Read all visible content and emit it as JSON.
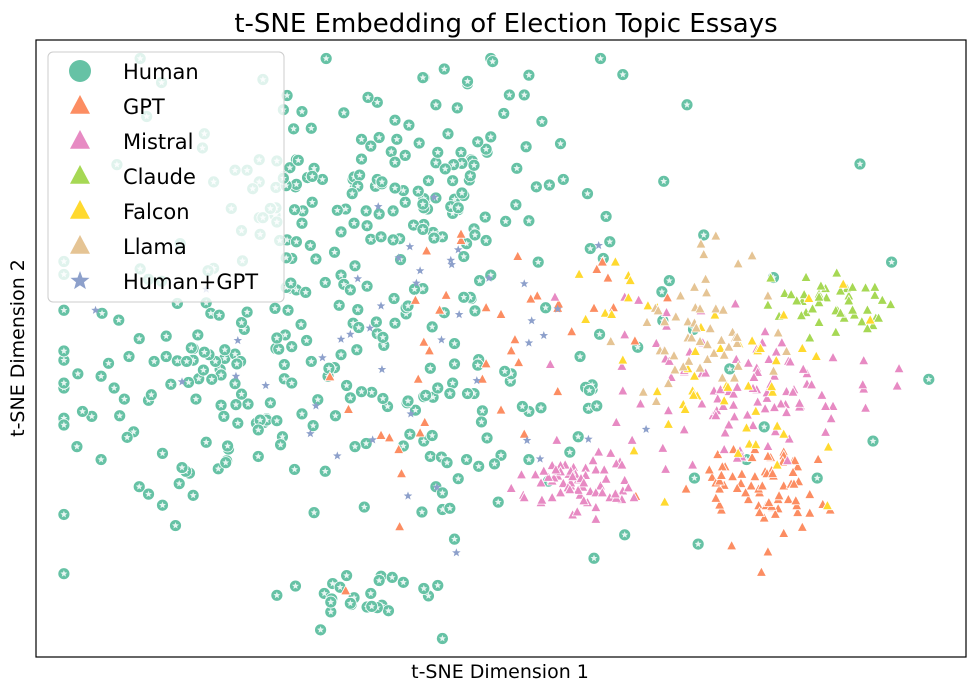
{
  "chart_data": {
    "type": "scatter",
    "title": "t-SNE Embedding of Election Topic Essays",
    "xlabel": "t-SNE Dimension 1",
    "ylabel": "t-SNE Dimension 2",
    "xlim": [
      0,
      100
    ],
    "ylim": [
      0,
      100
    ],
    "ticks_visible": false,
    "grid": false,
    "legend_position": "top-left",
    "series": [
      {
        "name": "Human",
        "marker": "circle",
        "color": "#66c2a5",
        "points": []
      },
      {
        "name": "GPT",
        "marker": "triangle",
        "color": "#fc8d62",
        "points": []
      },
      {
        "name": "Mistral",
        "marker": "triangle",
        "color": "#e78ac3",
        "points": []
      },
      {
        "name": "Claude",
        "marker": "triangle",
        "color": "#a6d854",
        "points": []
      },
      {
        "name": "Falcon",
        "marker": "triangle",
        "color": "#ffd92f",
        "points": []
      },
      {
        "name": "Llama",
        "marker": "triangle",
        "color": "#e5c494",
        "points": []
      },
      {
        "name": "Human+GPT",
        "marker": "star",
        "color": "#8da0cb",
        "points": []
      }
    ]
  }
}
